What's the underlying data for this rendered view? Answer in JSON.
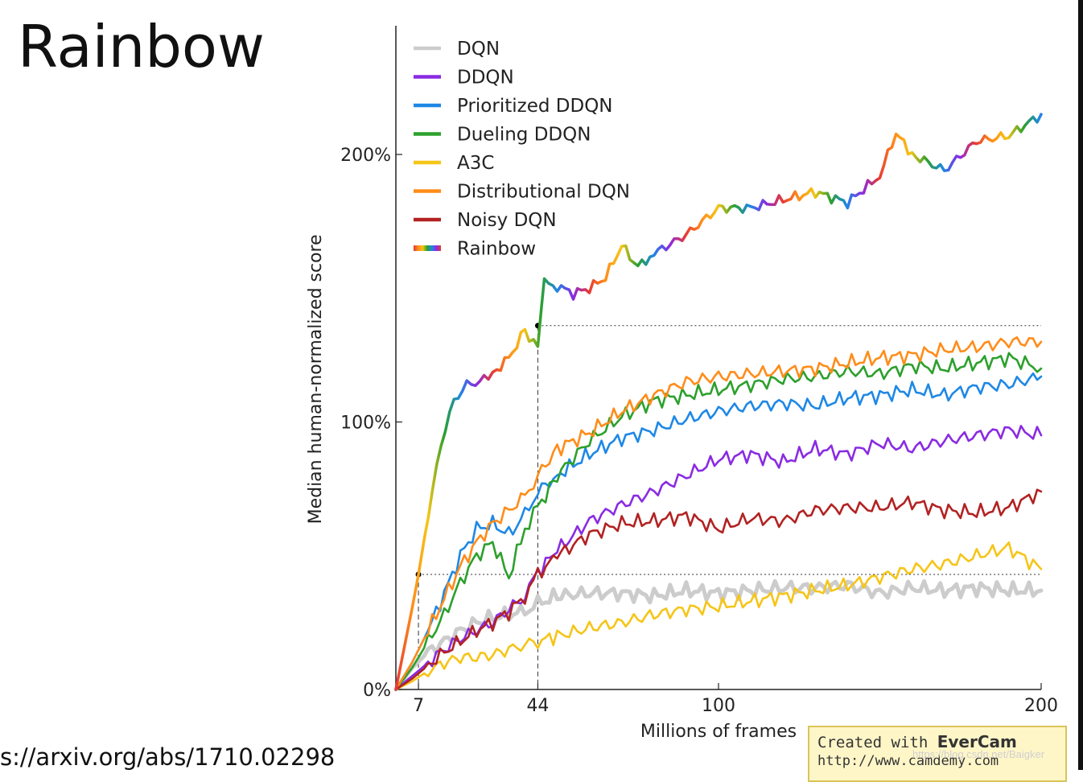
{
  "slide": {
    "title": "Rainbow",
    "source_url": "s://arxiv.org/abs/1710.02298"
  },
  "evercam": {
    "prefix": "Created with ",
    "brand": "EverCam",
    "url": "http://www.camdemy.com"
  },
  "watermark": "https://blog.csdn.net/Baigker",
  "chart_data": {
    "type": "line",
    "title": "",
    "xlabel": "Millions of frames",
    "ylabel": "Median human-normalized score",
    "xlim": [
      0,
      200
    ],
    "ylim": [
      0,
      250
    ],
    "yticks": [
      {
        "value": 0,
        "label": "0%"
      },
      {
        "value": 100,
        "label": "100%"
      },
      {
        "value": 200,
        "label": "200%"
      }
    ],
    "xticks": [
      {
        "value": 7,
        "label": "7"
      },
      {
        "value": 44,
        "label": "44"
      },
      {
        "value": 100,
        "label": "100"
      },
      {
        "value": 200,
        "label": "200"
      }
    ],
    "grid": false,
    "legend_position": "top-left",
    "reference_lines": [
      {
        "x": 7,
        "y": 43
      },
      {
        "x": 44,
        "y": 136
      }
    ],
    "series": [
      {
        "name": "DQN",
        "color": "#cccccc",
        "x": [
          0,
          5,
          10,
          15,
          20,
          25,
          30,
          35,
          40,
          44,
          50,
          60,
          70,
          80,
          90,
          100,
          110,
          120,
          130,
          140,
          150,
          160,
          170,
          180,
          190,
          200
        ],
        "y": [
          0,
          8,
          14,
          18,
          22,
          25,
          27,
          28,
          29,
          32,
          35,
          36,
          36,
          35,
          37,
          36,
          37,
          38,
          38,
          39,
          36,
          38,
          37,
          38,
          37,
          37
        ]
      },
      {
        "name": "DDQN",
        "color": "#8a2be2",
        "x": [
          0,
          5,
          10,
          15,
          20,
          25,
          30,
          35,
          40,
          44,
          50,
          60,
          70,
          80,
          90,
          100,
          110,
          120,
          130,
          140,
          150,
          160,
          170,
          180,
          190,
          200
        ],
        "y": [
          0,
          5,
          10,
          15,
          19,
          22,
          25,
          30,
          35,
          44,
          52,
          63,
          69,
          74,
          80,
          86,
          88,
          85,
          90,
          88,
          92,
          90,
          93,
          95,
          97,
          95
        ]
      },
      {
        "name": "Prioritized DDQN",
        "color": "#1e88e5",
        "x": [
          0,
          5,
          10,
          15,
          20,
          25,
          30,
          35,
          40,
          44,
          50,
          60,
          70,
          80,
          90,
          100,
          110,
          120,
          130,
          140,
          150,
          160,
          170,
          180,
          190,
          200
        ],
        "y": [
          0,
          10,
          22,
          36,
          50,
          60,
          62,
          58,
          65,
          74,
          80,
          88,
          94,
          97,
          101,
          104,
          106,
          107,
          106,
          109,
          110,
          112,
          110,
          113,
          114,
          117
        ]
      },
      {
        "name": "Dueling DDQN",
        "color": "#2ca02c",
        "x": [
          0,
          5,
          10,
          15,
          20,
          25,
          30,
          35,
          40,
          44,
          50,
          60,
          70,
          80,
          90,
          100,
          110,
          120,
          130,
          140,
          150,
          160,
          170,
          180,
          190,
          200
        ],
        "y": [
          0,
          8,
          18,
          28,
          40,
          50,
          55,
          42,
          60,
          68,
          80,
          93,
          102,
          108,
          110,
          112,
          114,
          116,
          117,
          119,
          118,
          121,
          120,
          122,
          124,
          120
        ]
      },
      {
        "name": "A3C",
        "color": "#f5c518",
        "x": [
          0,
          5,
          10,
          15,
          20,
          25,
          30,
          35,
          40,
          44,
          50,
          60,
          70,
          80,
          90,
          100,
          110,
          120,
          130,
          140,
          150,
          160,
          170,
          180,
          190,
          200
        ],
        "y": [
          0,
          3,
          7,
          10,
          12,
          12,
          13,
          15,
          17,
          18,
          20,
          23,
          25,
          28,
          30,
          31,
          33,
          35,
          37,
          39,
          42,
          45,
          47,
          50,
          53,
          45
        ]
      },
      {
        "name": "Distributional DQN",
        "color": "#ff8c1a",
        "x": [
          0,
          5,
          10,
          15,
          20,
          25,
          30,
          35,
          40,
          44,
          50,
          60,
          70,
          80,
          90,
          100,
          110,
          120,
          130,
          140,
          150,
          160,
          170,
          180,
          190,
          200
        ],
        "y": [
          0,
          10,
          22,
          34,
          46,
          55,
          62,
          67,
          72,
          80,
          90,
          96,
          104,
          110,
          115,
          117,
          118,
          119,
          120,
          122,
          124,
          125,
          127,
          128,
          130,
          130
        ]
      },
      {
        "name": "Noisy DQN",
        "color": "#b22222",
        "x": [
          0,
          5,
          10,
          15,
          20,
          25,
          30,
          35,
          40,
          44,
          50,
          60,
          70,
          80,
          90,
          100,
          110,
          120,
          130,
          140,
          150,
          160,
          170,
          180,
          190,
          200
        ],
        "y": [
          0,
          4,
          9,
          14,
          18,
          22,
          25,
          29,
          35,
          43,
          50,
          58,
          62,
          63,
          65,
          60,
          64,
          63,
          67,
          68,
          68,
          70,
          67,
          66,
          68,
          74
        ]
      },
      {
        "name": "Rainbow",
        "color": "#3b3b8f",
        "gradient": [
          "#e53935",
          "#ff8c1a",
          "#f5c518",
          "#2ca02c",
          "#1e88e5",
          "#8a2be2"
        ],
        "x": [
          0,
          3,
          5,
          7,
          10,
          14,
          18,
          22,
          26,
          30,
          35,
          40,
          44,
          46,
          50,
          55,
          60,
          65,
          70,
          75,
          80,
          90,
          100,
          110,
          120,
          130,
          140,
          150,
          155,
          160,
          170,
          180,
          190,
          200
        ],
        "y": [
          0,
          18,
          30,
          43,
          65,
          92,
          108,
          114,
          115,
          118,
          124,
          134,
          128,
          152,
          151,
          148,
          150,
          154,
          166,
          158,
          163,
          170,
          180,
          180,
          183,
          186,
          182,
          192,
          208,
          200,
          194,
          205,
          207,
          215
        ]
      }
    ]
  }
}
